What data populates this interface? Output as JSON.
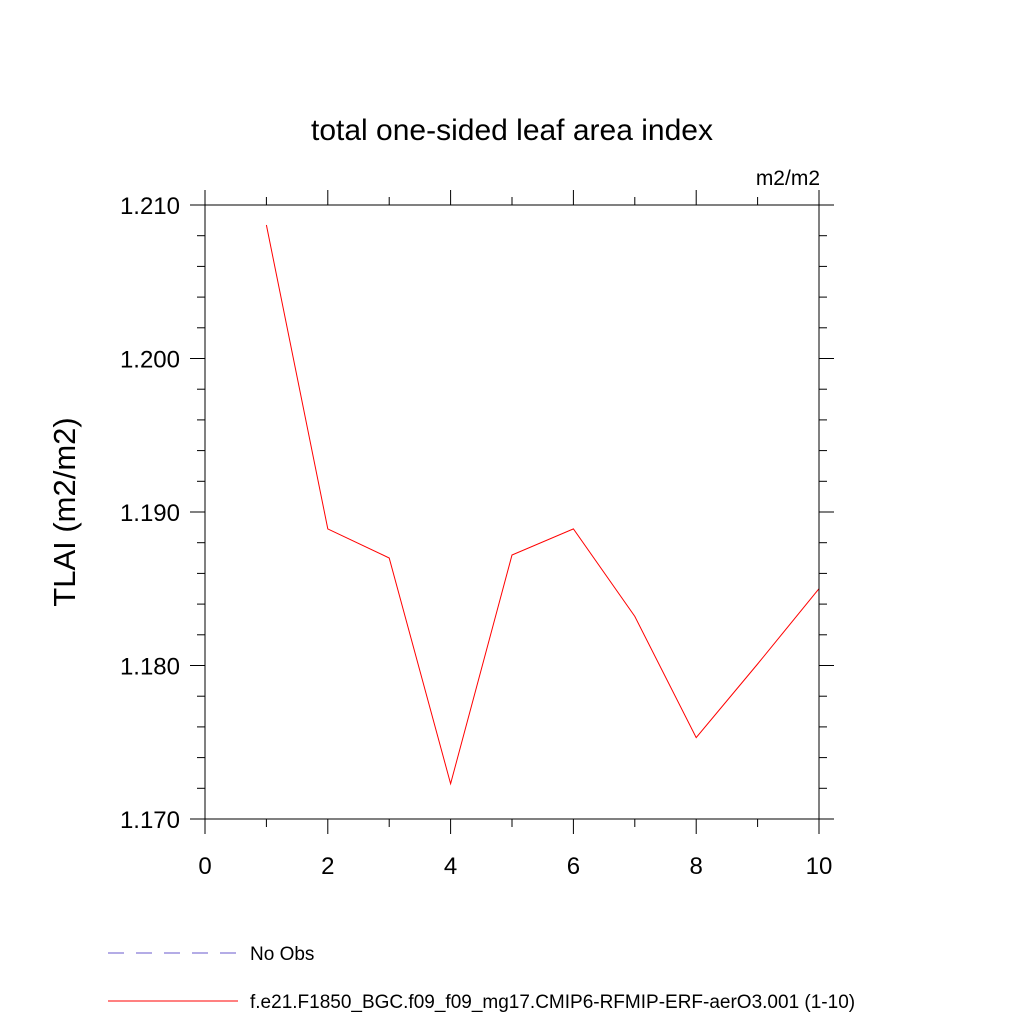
{
  "chart_data": {
    "type": "line",
    "title": "total one-sided leaf area index",
    "units": "m2/m2",
    "ylabel": "TLAI  (m2/m2)",
    "xlabel": "",
    "xlim": [
      0,
      10
    ],
    "ylim": [
      1.17,
      1.21
    ],
    "x_major_ticks": [
      0,
      2,
      4,
      6,
      8,
      10
    ],
    "x_tick_labels": [
      "0",
      "2",
      "4",
      "6",
      "8",
      "10"
    ],
    "y_major_ticks": [
      1.17,
      1.18,
      1.19,
      1.2,
      1.21
    ],
    "y_tick_labels": [
      "1.170",
      "1.180",
      "1.190",
      "1.200",
      "1.210"
    ],
    "y_minor_step": 0.002,
    "grid": false,
    "legend_position": "bottom-left",
    "series": [
      {
        "name": "f.e21.F1850_BGC.f09_f09_mg17.CMIP6-RFMIP-ERF-aerO3.001 (1-10)",
        "color": "#ff0000",
        "style": "solid",
        "x": [
          1,
          2,
          3,
          4,
          5,
          6,
          7,
          8,
          9,
          10
        ],
        "values": [
          1.2087,
          1.1889,
          1.187,
          1.1723,
          1.1872,
          1.1889,
          1.1832,
          1.1753,
          1.1801,
          1.185
        ]
      }
    ],
    "legend": [
      {
        "label": "No Obs",
        "color": "#6a5acd",
        "style": "dashed"
      },
      {
        "label": "f.e21.F1850_BGC.f09_f09_mg17.CMIP6-RFMIP-ERF-aerO3.001 (1-10)",
        "color": "#ff0000",
        "style": "solid"
      }
    ]
  }
}
